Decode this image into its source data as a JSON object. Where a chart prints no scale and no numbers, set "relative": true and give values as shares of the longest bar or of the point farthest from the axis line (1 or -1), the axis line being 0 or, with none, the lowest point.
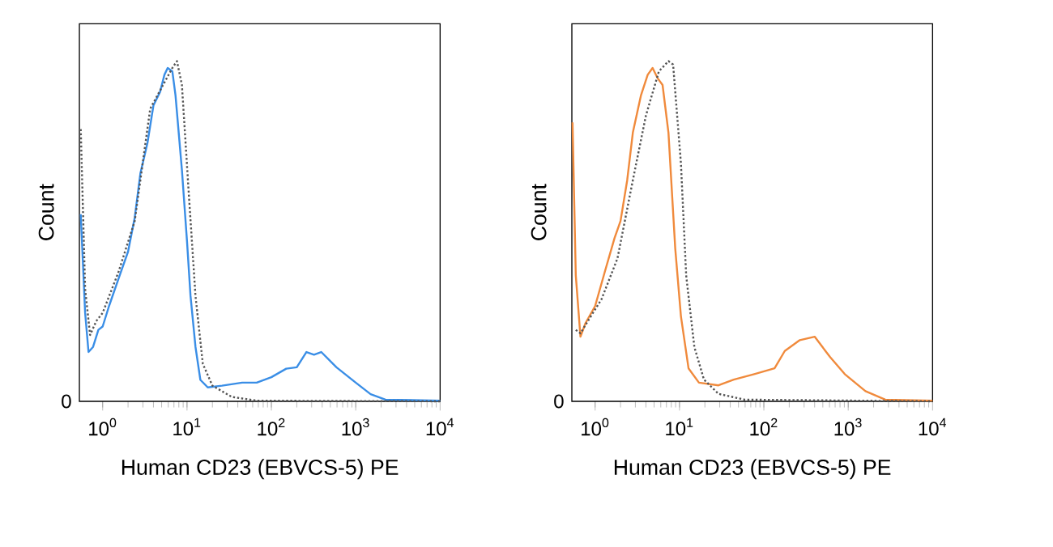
{
  "chart_data": [
    {
      "type": "line",
      "xlabel": "Human CD23 (EBVCS-5) PE",
      "ylabel": "Count",
      "relative": true,
      "log": "x",
      "xlim": [
        0.53,
        10000
      ],
      "xticks": [
        {
          "value": 1,
          "label": "10$^{0}$"
        },
        {
          "value": 10,
          "label": "10$^{1}$"
        },
        {
          "value": 100,
          "label": "10$^{2}$"
        },
        {
          "value": 1000,
          "label": "10$^{3}$"
        },
        {
          "value": 10000,
          "label": "10$^{4}$"
        }
      ],
      "annotations": [
        "0"
      ],
      "series": [
        {
          "color": "#3a8ee6",
          "line_style": "solid",
          "x": [
            0.55,
            0.62,
            0.68,
            0.77,
            0.89,
            1,
            1.19,
            1.54,
            2.0,
            2.4,
            2.8,
            3.4,
            4.0,
            4.8,
            5.4,
            5.9,
            6.7,
            7.3,
            8.7,
            10,
            11,
            12.6,
            14.4,
            17.6,
            26,
            45,
            67,
            100,
            150,
            200,
            260,
            320,
            390,
            590,
            1000,
            1500,
            2250,
            10000
          ],
          "values": [
            0.55,
            0.26,
            0.145,
            0.16,
            0.21,
            0.22,
            0.28,
            0.36,
            0.44,
            0.54,
            0.67,
            0.76,
            0.87,
            0.91,
            0.96,
            0.98,
            0.97,
            0.9,
            0.68,
            0.47,
            0.31,
            0.16,
            0.063,
            0.041,
            0.046,
            0.055,
            0.055,
            0.071,
            0.096,
            0.1,
            0.145,
            0.137,
            0.145,
            0.1,
            0.055,
            0.021,
            0.005,
            0.002
          ]
        },
        {
          "color": "#555555",
          "line_style": "dotted",
          "x": [
            0.55,
            0.62,
            0.71,
            0.84,
            1,
            1.54,
            2.4,
            3.66,
            5.2,
            6.7,
            7.6,
            8.7,
            10.5,
            12.6,
            15.4,
            20,
            34,
            67,
            10000
          ],
          "values": [
            0.8,
            0.33,
            0.195,
            0.236,
            0.26,
            0.38,
            0.53,
            0.86,
            0.93,
            0.98,
            1.0,
            0.93,
            0.61,
            0.31,
            0.11,
            0.046,
            0.013,
            0.002,
            0
          ]
        }
      ]
    },
    {
      "type": "line",
      "xlabel": "Human CD23 (EBVCS-5) PE",
      "ylabel": "Count",
      "relative": true,
      "log": "x",
      "xlim": [
        0.53,
        10000
      ],
      "xticks": [
        {
          "value": 1,
          "label": "10$^{0}$"
        },
        {
          "value": 10,
          "label": "10$^{1}$"
        },
        {
          "value": 100,
          "label": "10$^{2}$"
        },
        {
          "value": 1000,
          "label": "10$^{3}$"
        },
        {
          "value": 10000,
          "label": "10$^{4}$"
        }
      ],
      "annotations": [
        "0"
      ],
      "series": [
        {
          "color": "#f08a3c",
          "line_style": "solid",
          "x": [
            0.54,
            0.59,
            0.67,
            0.77,
            1,
            1.3,
            1.7,
            2.0,
            2.4,
            2.8,
            3.5,
            4.2,
            4.8,
            5.5,
            6.3,
            7.4,
            8.9,
            10.4,
            12.8,
            17,
            29,
            44,
            77,
            134,
            177,
            267,
            400,
            610,
            910,
            1600,
            2750,
            10000
          ],
          "values": [
            0.82,
            0.37,
            0.19,
            0.23,
            0.28,
            0.38,
            0.48,
            0.53,
            0.65,
            0.79,
            0.9,
            0.96,
            0.98,
            0.95,
            0.93,
            0.79,
            0.45,
            0.25,
            0.097,
            0.055,
            0.047,
            0.064,
            0.08,
            0.097,
            0.148,
            0.18,
            0.19,
            0.13,
            0.08,
            0.03,
            0.005,
            0.002
          ]
        },
        {
          "color": "#555555",
          "line_style": "dotted",
          "x": [
            0.59,
            0.67,
            0.84,
            1.19,
            1.84,
            2.8,
            4.0,
            5.7,
            7.4,
            8.4,
            10.4,
            12,
            15,
            19.5,
            29,
            59,
            10000
          ],
          "values": [
            0.21,
            0.2,
            0.24,
            0.3,
            0.42,
            0.65,
            0.84,
            0.97,
            1.0,
            0.99,
            0.7,
            0.37,
            0.16,
            0.064,
            0.022,
            0.005,
            0
          ]
        }
      ]
    }
  ]
}
